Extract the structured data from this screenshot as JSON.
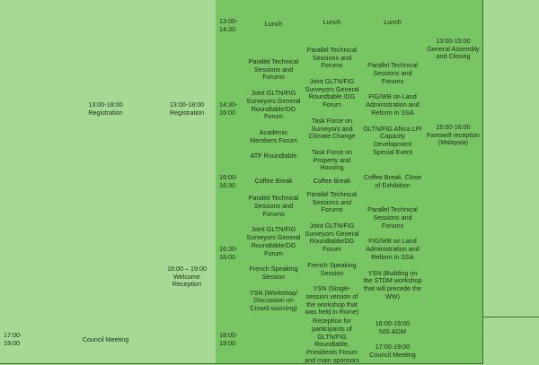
{
  "left": {
    "registration_1": "13:00-18:00\nRegistration",
    "registration_2": "13:00-18:00\nRegistration",
    "welcome_reception": "16:00 – 19:00\nWelcome Reception",
    "council_time": "17:00-\n19:00",
    "council_meeting": "Council Meeting"
  },
  "times": [
    "13:00-\n14:30",
    "14:30-\n16:00",
    "16:00-\n16:30",
    "16:30-\n18:00",
    "18:00-\n19:00"
  ],
  "day1": {
    "lunch": "Lunch",
    "afternoon": "Parallel Technical Sessions and Forums\n\nJoint GLTN/FIG Surveyors General Roundtable/DG Forum\n\nAcademic Members Forum\n\nATF Roundtable",
    "coffee": "Coffee Break",
    "late": "Parallel Technical Sessions and Forums\n\nJoint GLTN/FIG Surveyors General Roundtable/DG Forum\n\nFrench Speaking Session\n\nYSN (Workshop/ Discussion on Crowd sourcing)",
    "evening": ""
  },
  "day2": {
    "lunch": "Lunch",
    "afternoon": "Parallel Technical Sessions and Forums\n\nJoint GLTN/FIG Surveyors General Roundtable /DG Forum\n\nTask Force on Surveyors and Climate Change\n\nTask Force on Property and Housing",
    "coffee": "Coffee Break",
    "late": "Parallel Technical Sessions and Forums\n\nJoint GLTN/FIG Surveyors General Roundtable/DG Forum\n\nFrench Speaking Session\n\nYSN (Single-session version of the workshop that was held in Rome)",
    "evening": "Reception for participants of GLTN/FIG Roundtable, Presidents Forum and main sponsors"
  },
  "day3": {
    "lunch": "Lunch",
    "afternoon": "Parallel Technical Sessions and Forums\n\nFIG/WB on Land Administration and Reform in SSA\n\nGLTN/FIG Africa LPI Capacity Development Special Event",
    "coffee": "Coffee Break. Close of Exhibition",
    "late": "Parallel Technical Sessions and Forums\n\nFIG/WB on Land Administration and Reform in SSA\n\nYSN (Building on the STDM workshop that will precede the WW)",
    "evening": "16:00-19:00\nNIS AGM\n\n17:00-19:00\nCouncil Meeting"
  },
  "day4": {
    "assembly": "13:00-15:00\nGeneral Assembly and Closing",
    "farewell": "15:00-16:00\nFarewell reception (Malaysia)"
  }
}
